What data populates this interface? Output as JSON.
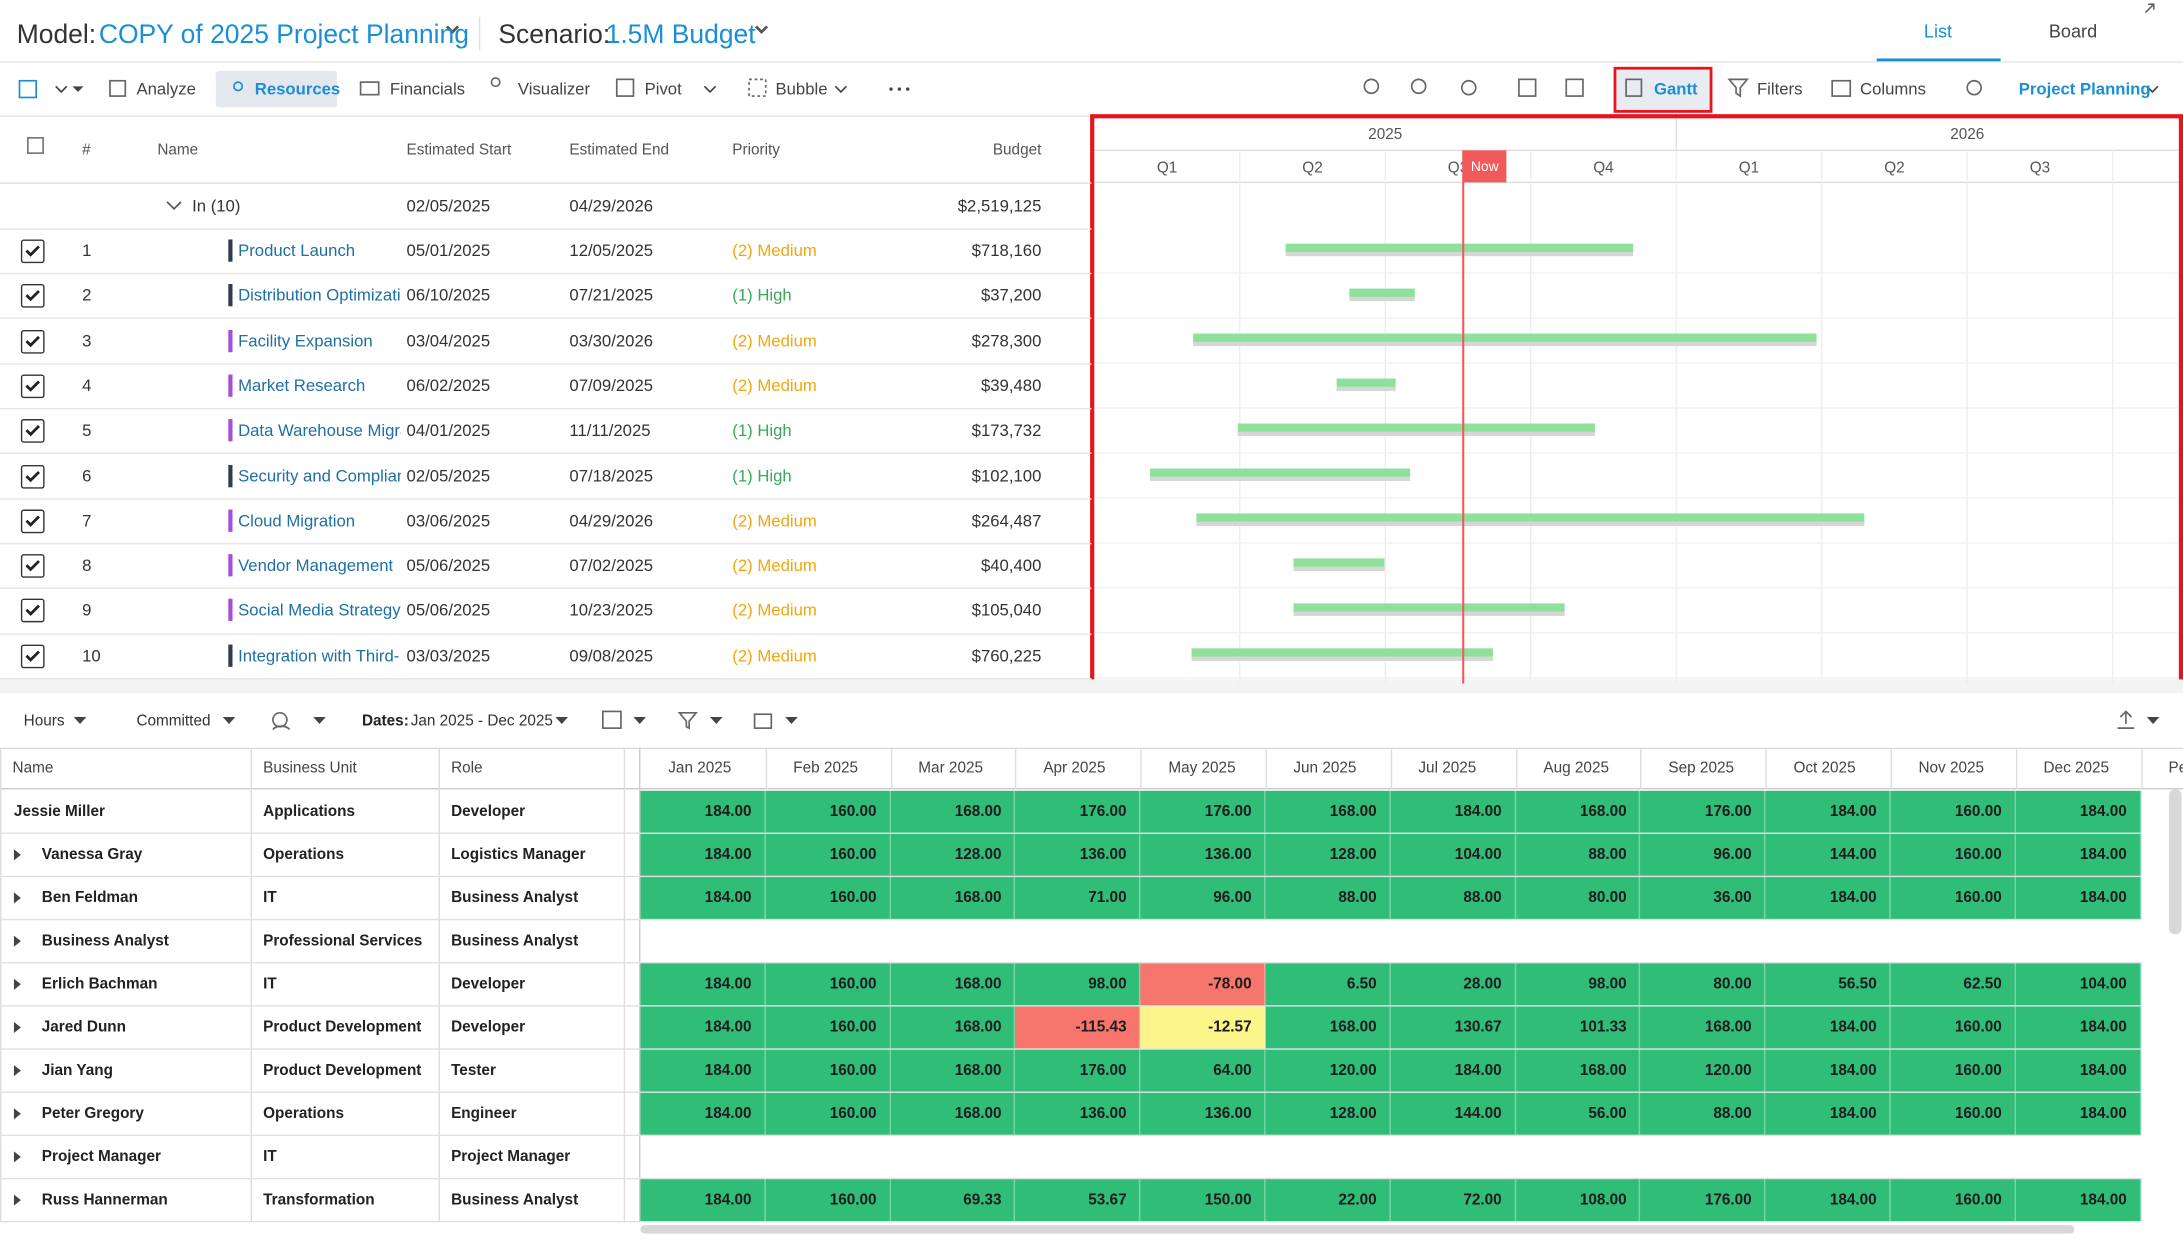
{
  "header": {
    "model_label": "Model:",
    "model_name": "COPY of 2025 Project Planning",
    "scenario_label": "Scenario:",
    "scenario_name": "1.5M Budget",
    "tabs": [
      "List",
      "Board"
    ]
  },
  "toolbar": {
    "left": [
      "Analyze",
      "Resources",
      "Financials",
      "Visualizer",
      "Pivot",
      "Bubble"
    ],
    "right": [
      "Gantt",
      "Filters",
      "Columns"
    ],
    "view": "Project Planning"
  },
  "grid": {
    "columns": [
      "#",
      "Name",
      "Estimated Start",
      "Estimated End",
      "Priority",
      "Budget"
    ],
    "group": {
      "label": "In (10)",
      "start": "02/05/2025",
      "end": "04/29/2026",
      "budget": "$2,519,125"
    },
    "rows": [
      {
        "num": 1,
        "name": "Product Launch",
        "start": "05/01/2025",
        "end": "12/05/2025",
        "priority": "(2) Medium",
        "priority_color": "#f2a60c",
        "budget": "$718,160",
        "marker": "#2f3e4e"
      },
      {
        "num": 2,
        "name": "Distribution Optimizati",
        "start": "06/10/2025",
        "end": "07/21/2025",
        "priority": "(1) High",
        "priority_color": "#3aa85a",
        "budget": "$37,200",
        "marker": "#2f3e4e"
      },
      {
        "num": 3,
        "name": "Facility Expansion",
        "start": "03/04/2025",
        "end": "03/30/2026",
        "priority": "(2) Medium",
        "priority_color": "#f2a60c",
        "budget": "$278,300",
        "marker": "#a64fd6"
      },
      {
        "num": 4,
        "name": "Market Research",
        "start": "06/02/2025",
        "end": "07/09/2025",
        "priority": "(2) Medium",
        "priority_color": "#f2a60c",
        "budget": "$39,480",
        "marker": "#a64fd6"
      },
      {
        "num": 5,
        "name": "Data Warehouse Migra",
        "start": "04/01/2025",
        "end": "11/11/2025",
        "priority": "(1) High",
        "priority_color": "#3aa85a",
        "budget": "$173,732",
        "marker": "#a64fd6"
      },
      {
        "num": 6,
        "name": "Security and Complian",
        "start": "02/05/2025",
        "end": "07/18/2025",
        "priority": "(1) High",
        "priority_color": "#3aa85a",
        "budget": "$102,100",
        "marker": "#2f3e4e"
      },
      {
        "num": 7,
        "name": "Cloud Migration",
        "start": "03/06/2025",
        "end": "04/29/2026",
        "priority": "(2) Medium",
        "priority_color": "#f2a60c",
        "budget": "$264,487",
        "marker": "#a64fd6"
      },
      {
        "num": 8,
        "name": "Vendor Management",
        "start": "05/06/2025",
        "end": "07/02/2025",
        "priority": "(2) Medium",
        "priority_color": "#f2a60c",
        "budget": "$40,400",
        "marker": "#a64fd6"
      },
      {
        "num": 9,
        "name": "Social Media Strategy",
        "start": "05/06/2025",
        "end": "10/23/2025",
        "priority": "(2) Medium",
        "priority_color": "#f2a60c",
        "budget": "$105,040",
        "marker": "#a64fd6"
      },
      {
        "num": 10,
        "name": "Integration with Third-",
        "start": "03/03/2025",
        "end": "09/08/2025",
        "priority": "(2) Medium",
        "priority_color": "#f2a60c",
        "budget": "$760,225",
        "marker": "#2f3e4e"
      }
    ]
  },
  "gantt": {
    "years": [
      "2025",
      "2026"
    ],
    "quarters": [
      "Q1",
      "Q2",
      "Q3",
      "Q4",
      "Q1",
      "Q2",
      "Q3"
    ],
    "now": "Now"
  },
  "resources_toolbar": {
    "items": [
      "Hours",
      "Committed"
    ],
    "dates_label": "Dates:",
    "dates": "Jan 2025 - Dec 2025"
  },
  "resources": {
    "columns": [
      "Name",
      "Business Unit",
      "Role"
    ],
    "months": [
      "Jan 2025",
      "Feb 2025",
      "Mar 2025",
      "Apr 2025",
      "May 2025",
      "Jun 2025",
      "Jul 2025",
      "Aug 2025",
      "Sep 2025",
      "Oct 2025",
      "Nov 2025",
      "Dec 2025",
      "Peri"
    ],
    "rows": [
      {
        "name": "Jessie Miller",
        "unit": "Applications",
        "role": "Developer",
        "values": [
          "184.00",
          "160.00",
          "168.00",
          "176.00",
          "176.00",
          "168.00",
          "184.00",
          "168.00",
          "176.00",
          "184.00",
          "160.00",
          "184.00"
        ]
      },
      {
        "name": "Vanessa Gray",
        "unit": "Operations",
        "role": "Logistics Manager",
        "values": [
          "184.00",
          "160.00",
          "128.00",
          "136.00",
          "136.00",
          "128.00",
          "104.00",
          "88.00",
          "96.00",
          "144.00",
          "160.00",
          "184.00"
        ]
      },
      {
        "name": "Ben Feldman",
        "unit": "IT",
        "role": "Business Analyst",
        "values": [
          "184.00",
          "160.00",
          "168.00",
          "71.00",
          "96.00",
          "88.00",
          "88.00",
          "80.00",
          "36.00",
          "184.00",
          "160.00",
          "184.00"
        ]
      },
      {
        "name": "Business Analyst",
        "unit": "Professional Services",
        "role": "Business Analyst",
        "values": []
      },
      {
        "name": "Erlich Bachman",
        "unit": "IT",
        "role": "Developer",
        "values": [
          "184.00",
          "160.00",
          "168.00",
          "98.00",
          "-78.00",
          "6.50",
          "28.00",
          "98.00",
          "80.00",
          "56.50",
          "62.50",
          "104.00"
        ]
      },
      {
        "name": "Jared Dunn",
        "unit": "Product Development",
        "role": "Developer",
        "values": [
          "184.00",
          "160.00",
          "168.00",
          "-115.43",
          "-12.57",
          "168.00",
          "130.67",
          "101.33",
          "168.00",
          "184.00",
          "160.00",
          "184.00"
        ]
      },
      {
        "name": "Jian Yang",
        "unit": "Product Development",
        "role": "Tester",
        "values": [
          "184.00",
          "160.00",
          "168.00",
          "176.00",
          "64.00",
          "120.00",
          "184.00",
          "168.00",
          "120.00",
          "184.00",
          "160.00",
          "184.00"
        ]
      },
      {
        "name": "Peter Gregory",
        "unit": "Operations",
        "role": "Engineer",
        "values": [
          "184.00",
          "160.00",
          "168.00",
          "136.00",
          "136.00",
          "128.00",
          "144.00",
          "56.00",
          "88.00",
          "184.00",
          "160.00",
          "184.00"
        ]
      },
      {
        "name": "Project Manager",
        "unit": "IT",
        "role": "Project Manager",
        "values": []
      },
      {
        "name": "Russ Hannerman",
        "unit": "Transformation",
        "role": "Business Analyst",
        "values": [
          "184.00",
          "160.00",
          "69.33",
          "53.67",
          "150.00",
          "22.00",
          "72.00",
          "108.00",
          "176.00",
          "184.00",
          "160.00",
          "184.00"
        ]
      }
    ]
  }
}
